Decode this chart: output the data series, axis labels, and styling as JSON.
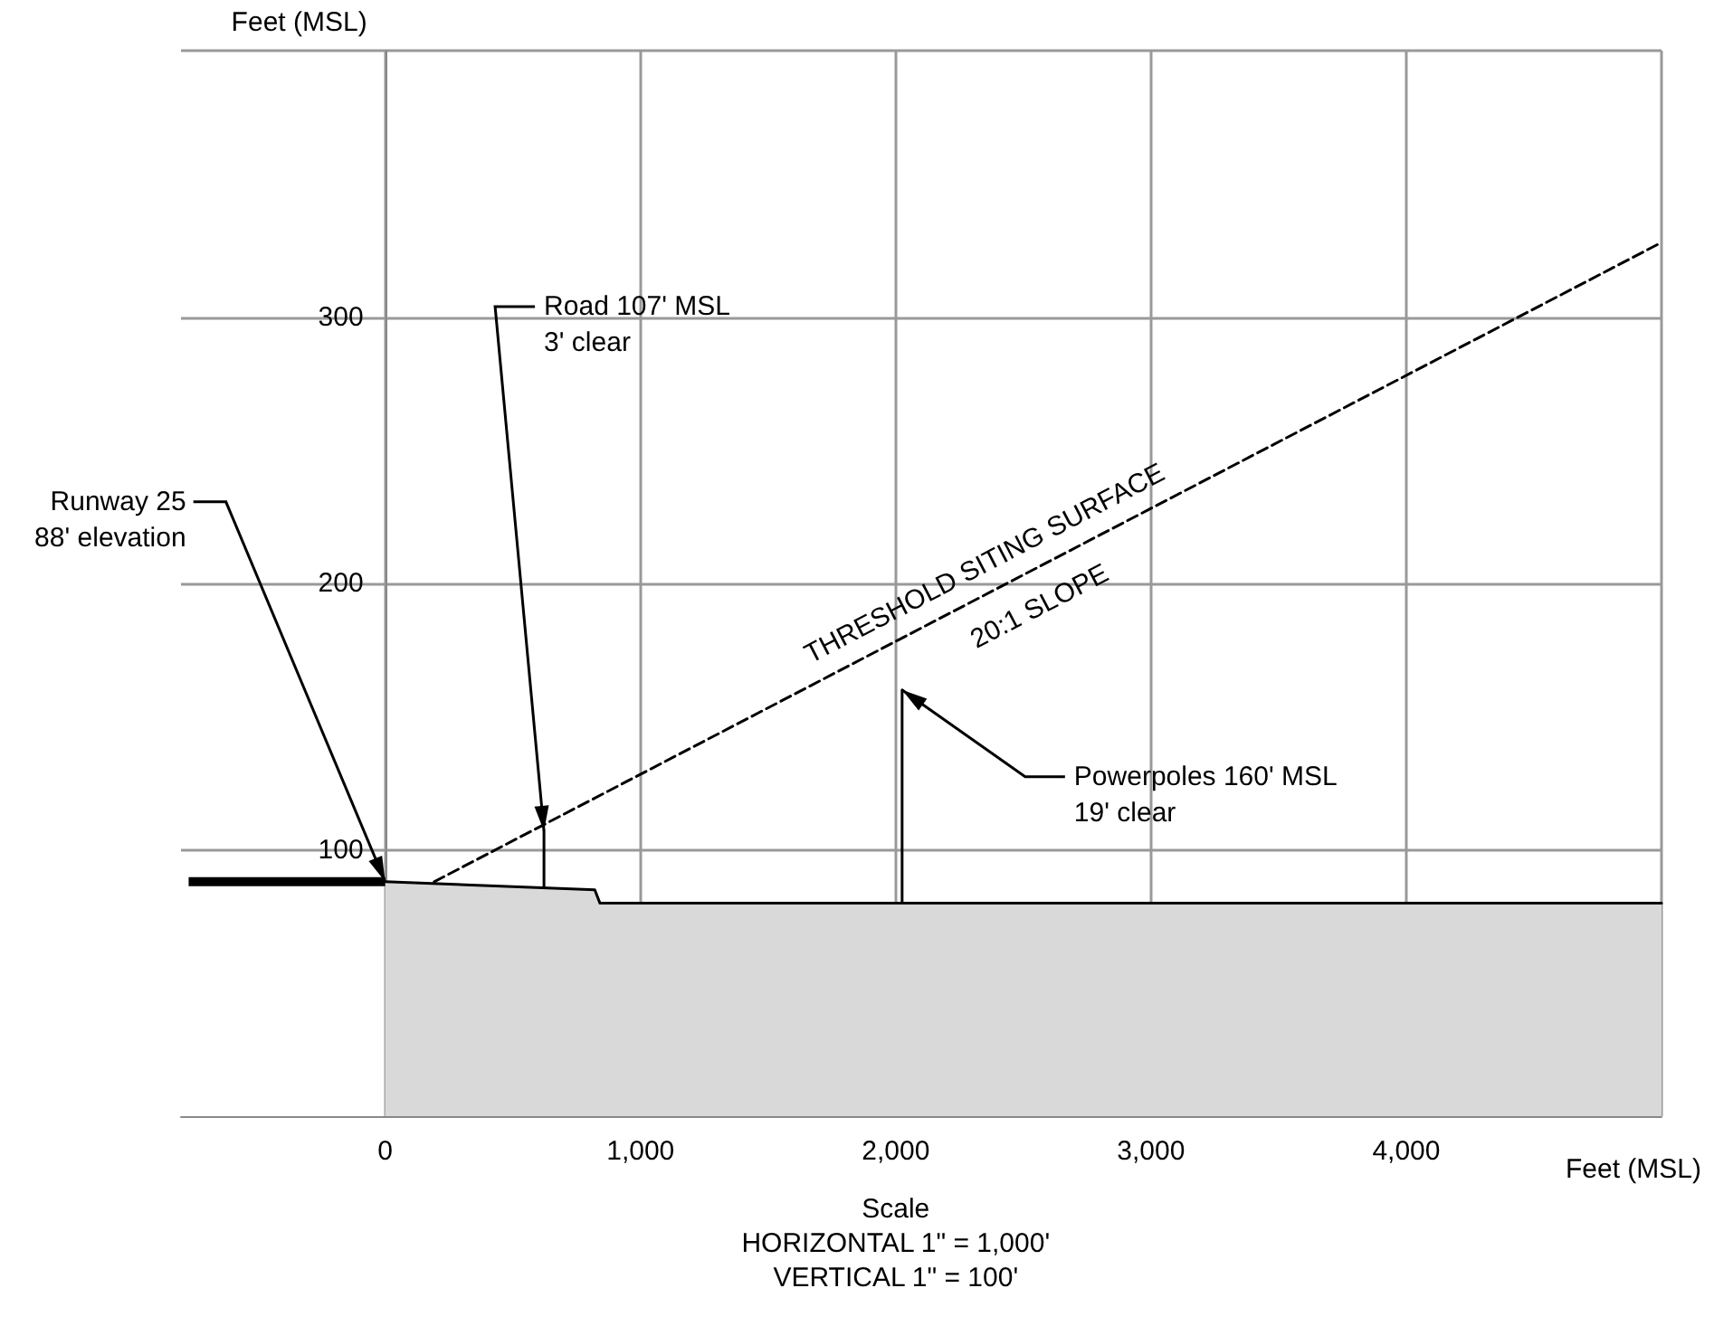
{
  "chart_data": {
    "type": "line",
    "xlabel": "Feet (MSL)",
    "ylabel": "Feet (MSL)",
    "xlim": [
      -800,
      5000
    ],
    "xticks": [
      {
        "value": 0,
        "label": "0"
      },
      {
        "value": 1000,
        "label": "1,000"
      },
      {
        "value": 2000,
        "label": "2,000"
      },
      {
        "value": 3000,
        "label": "3,000"
      },
      {
        "value": 4000,
        "label": "4,000"
      },
      {
        "value": 5000,
        "label": null
      }
    ],
    "ylim": [
      0,
      400
    ],
    "yticks": [
      100,
      200,
      300,
      {
        "value": 400,
        "label": null
      }
    ],
    "grid": true,
    "marker": "none",
    "series": [
      {
        "color": "#000000",
        "x": [
          -770,
          0
        ],
        "values": [
          88,
          88
        ]
      },
      {
        "type": "area",
        "color": "#d9d9d9",
        "x": [
          0,
          821,
          841,
          5000
        ],
        "values": [
          88,
          85,
          80,
          80
        ]
      },
      {
        "color": "#000000",
        "line_style": "dashed",
        "x": [
          192,
          5000
        ],
        "values": [
          88,
          328
        ]
      },
      {
        "color": "#000000",
        "x": [
          622,
          622
        ],
        "values": [
          86,
          107
        ]
      },
      {
        "color": "#000000",
        "x": [
          2025,
          2025
        ],
        "values": [
          80,
          160
        ]
      }
    ],
    "annotations": [
      {
        "text": "Runway 25\n88' elevation",
        "x": 0,
        "y": 88
      },
      {
        "text": "Road 107' MSL\n3' clear",
        "x": 622,
        "y": 107
      },
      {
        "text": "Powerpoles 160' MSL\n19' clear",
        "x": 2025,
        "y": 160
      },
      {
        "text": "THRESHOLD SITING SURFACE",
        "x": 2400,
        "y": 198
      },
      {
        "text": "20:1 SLOPE",
        "x": 2500,
        "y": 203
      },
      "Scale\nHORIZONTAL 1\" = 1,000'\nVERTICAL 1\" = 100'"
    ]
  }
}
